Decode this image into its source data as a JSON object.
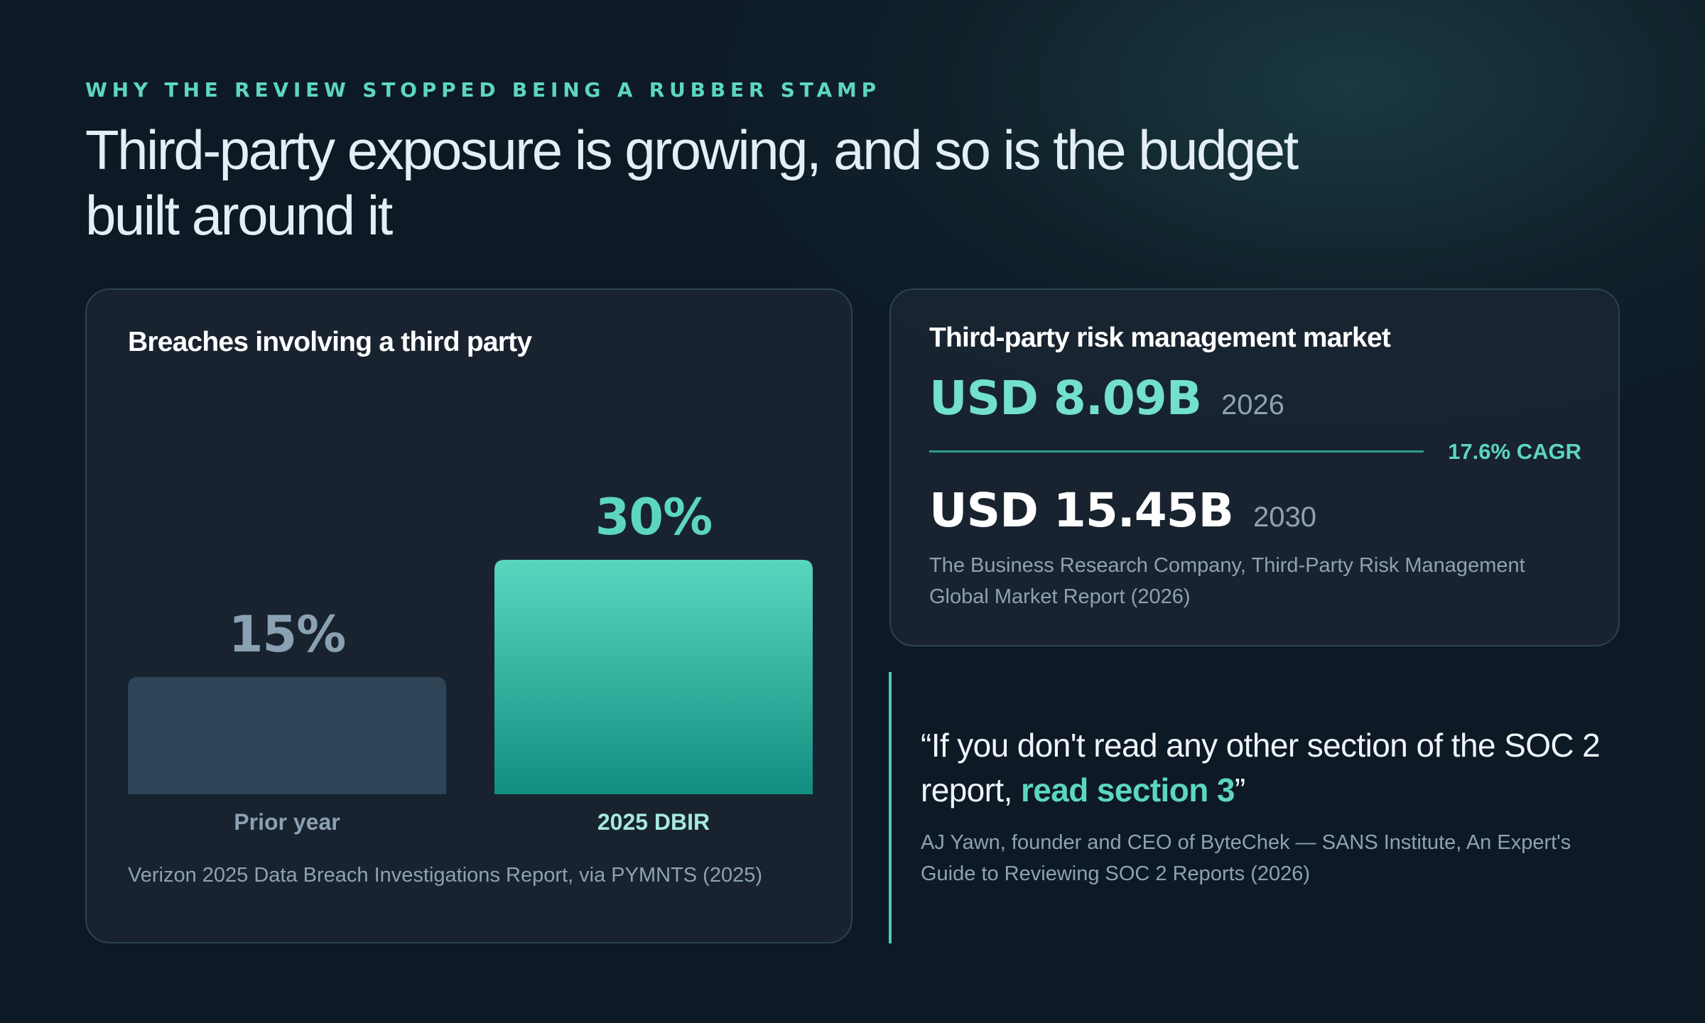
{
  "eyebrow": "WHY THE REVIEW STOPPED BEING A RUBBER STAMP",
  "headline": "Third-party exposure is growing, and so is the budget built around it",
  "colors": {
    "accent": "#5dd6c0",
    "bar_prior": "#2d4557",
    "bar_current_top": "#5ad6c0",
    "bar_current_bottom": "#118e80",
    "label_prior": "#8aa1b3"
  },
  "breaches_card": {
    "title": "Breaches involving a third party",
    "source": "Verizon 2025 Data Breach Investigations Report, via PYMNTS (2025)"
  },
  "chart_data": {
    "type": "bar",
    "title": "Breaches involving a third party",
    "categories": [
      "Prior year",
      "2025 DBIR"
    ],
    "values": [
      15,
      30
    ],
    "value_labels": [
      "15%",
      "30%"
    ],
    "ylim": [
      0,
      30
    ],
    "grid": false
  },
  "market_card": {
    "title": "Third-party risk management market",
    "stat_2026": {
      "amount": "USD 8.09B",
      "year": "2026"
    },
    "cagr": "17.6% CAGR",
    "stat_2030": {
      "amount": "USD 15.45B",
      "year": "2030"
    },
    "source": "The Business Research Company, Third-Party Risk Management Global Market Report (2026)"
  },
  "quote": {
    "open": "“If you don't read any other section of the SOC 2 report, ",
    "highlight": "read section 3",
    "close": "”",
    "attribution": "AJ Yawn, founder and CEO of ByteChek — SANS Institute, An Expert's Guide to Reviewing SOC 2 Reports (2026)"
  }
}
